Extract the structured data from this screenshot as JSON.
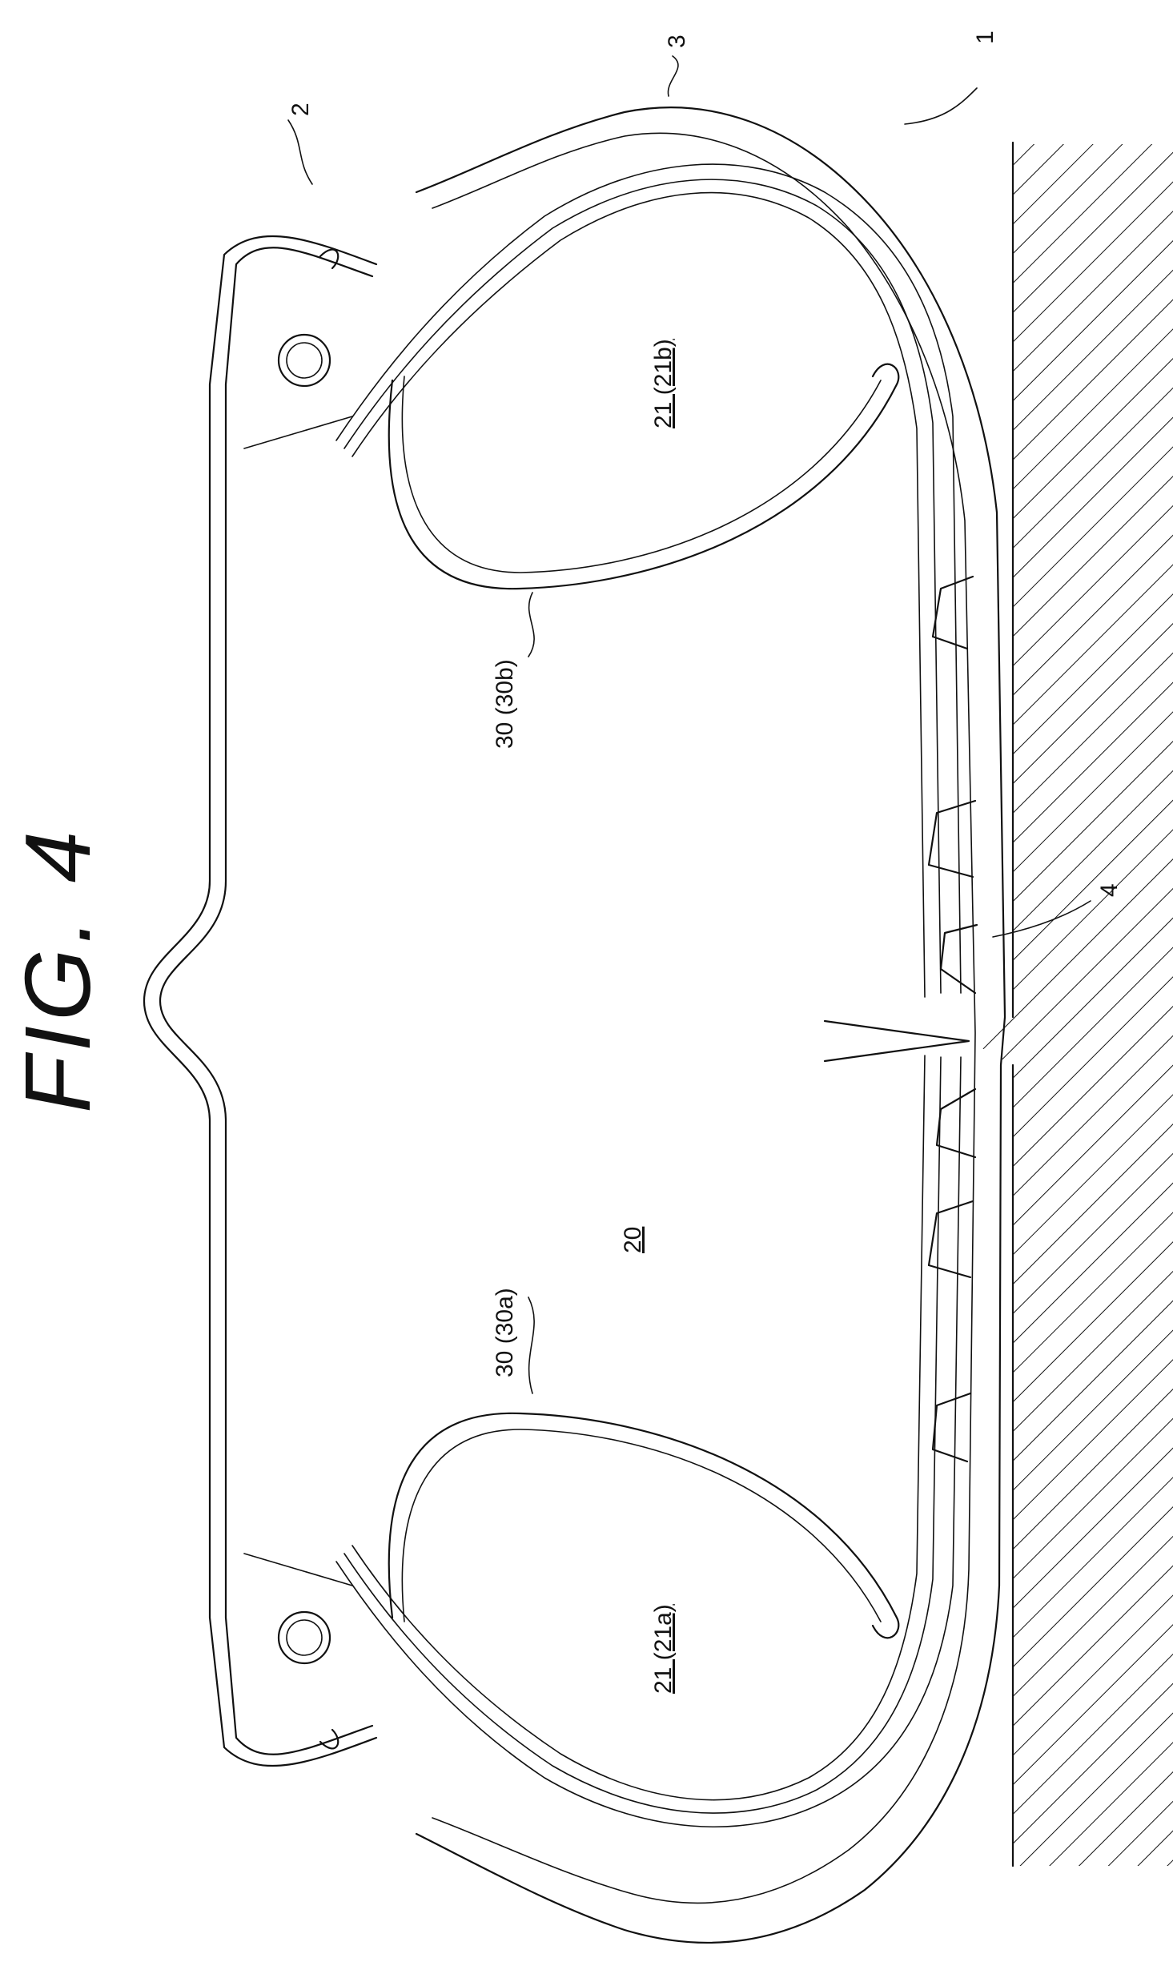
{
  "figure": {
    "title": "FIG. 4",
    "labels": {
      "ref_1": "1",
      "ref_2": "2",
      "ref_3": "3",
      "ref_4": "4",
      "ref_20": "20",
      "ref_21a": "21 (21a)",
      "ref_21b": "21 (21b)",
      "ref_30a": "30 (30a)",
      "ref_30b": "30 (30b)"
    },
    "orientation": "rotated-90-ccw"
  }
}
